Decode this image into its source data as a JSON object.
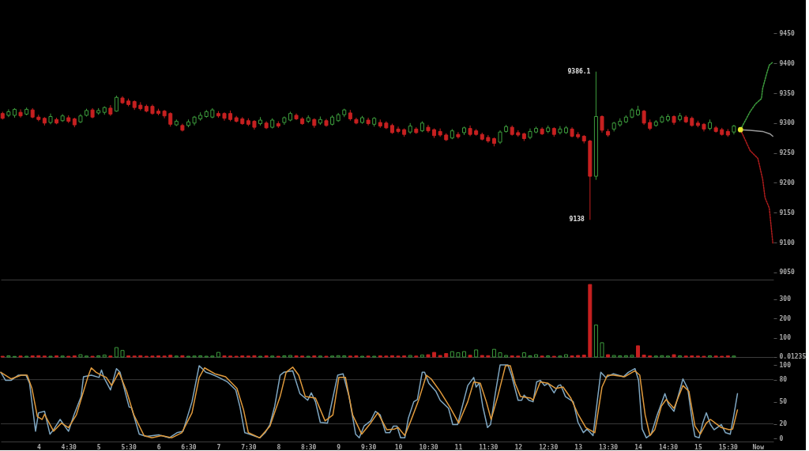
{
  "chart_data": [
    {
      "type": "candlestick",
      "xlim": [
        3.37,
        16.26
      ],
      "ylim": [
        9038,
        9506
      ],
      "yticks": [
        9050,
        9100,
        9150,
        9200,
        9250,
        9300,
        9350,
        9400,
        9450
      ],
      "tick_labels": "y",
      "grid": false,
      "x": [
        3.4,
        3.5,
        3.6,
        3.7,
        3.8,
        3.9,
        4.0,
        4.1,
        4.2,
        4.3,
        4.4,
        4.5,
        4.6,
        4.7,
        4.8,
        4.9,
        5.0,
        5.1,
        5.2,
        5.3,
        5.4,
        5.5,
        5.6,
        5.7,
        5.8,
        5.9,
        6.0,
        6.1,
        6.2,
        6.3,
        6.4,
        6.5,
        6.6,
        6.7,
        6.8,
        6.9,
        7.0,
        7.1,
        7.2,
        7.3,
        7.4,
        7.5,
        7.6,
        7.7,
        7.8,
        7.9,
        8.0,
        8.1,
        8.2,
        8.3,
        8.4,
        8.5,
        8.6,
        8.7,
        8.8,
        8.9,
        9.0,
        9.1,
        9.2,
        9.3,
        9.4,
        9.5,
        9.6,
        9.7,
        9.8,
        9.9,
        10.0,
        10.1,
        10.2,
        10.3,
        10.4,
        10.5,
        10.6,
        10.7,
        10.8,
        10.9,
        11.0,
        11.1,
        11.2,
        11.3,
        11.4,
        11.5,
        11.6,
        11.7,
        11.8,
        11.9,
        12.0,
        12.1,
        12.2,
        12.3,
        12.4,
        12.5,
        12.6,
        12.7,
        12.8,
        12.9,
        13.0,
        13.1,
        13.2,
        13.3,
        13.4,
        13.5,
        13.6,
        13.7,
        13.8,
        13.9,
        14.0,
        14.1,
        14.2,
        14.3,
        14.4,
        14.5,
        14.6,
        14.7,
        14.8,
        14.9,
        15.0,
        15.1,
        15.2,
        15.3,
        15.4,
        15.5,
        15.6
      ],
      "ohlc": [
        [
          9316,
          9319,
          9306,
          9308
        ],
        [
          9313,
          9323,
          9310,
          9319
        ],
        [
          9313,
          9325,
          9309,
          9323
        ],
        [
          9318,
          9323,
          9309,
          9312
        ],
        [
          9315,
          9326,
          9313,
          9323
        ],
        [
          9322,
          9325,
          9308,
          9310
        ],
        [
          9310,
          9314,
          9303,
          9306
        ],
        [
          9308,
          9310,
          9296,
          9300
        ],
        [
          9301,
          9316,
          9298,
          9311
        ],
        [
          9306,
          9309,
          9298,
          9300
        ],
        [
          9304,
          9315,
          9302,
          9312
        ],
        [
          9309,
          9313,
          9300,
          9303
        ],
        [
          9307,
          9309,
          9293,
          9297
        ],
        [
          9302,
          9315,
          9300,
          9312
        ],
        [
          9313,
          9324,
          9311,
          9321
        ],
        [
          9322,
          9325,
          9308,
          9310
        ],
        [
          9317,
          9325,
          9314,
          9321
        ],
        [
          9318,
          9328,
          9314,
          9326
        ],
        [
          9325,
          9330,
          9312,
          9315
        ],
        [
          9320,
          9346,
          9319,
          9343
        ],
        [
          9342,
          9345,
          9332,
          9334
        ],
        [
          9337,
          9341,
          9328,
          9331
        ],
        [
          9336,
          9338,
          9322,
          9326
        ],
        [
          9330,
          9335,
          9321,
          9324
        ],
        [
          9328,
          9331,
          9318,
          9320
        ],
        [
          9328,
          9331,
          9314,
          9316
        ],
        [
          9320,
          9324,
          9313,
          9316
        ],
        [
          9320,
          9322,
          9308,
          9312
        ],
        [
          9316,
          9318,
          9294,
          9298
        ],
        [
          9297,
          9306,
          9295,
          9303
        ],
        [
          9296,
          9299,
          9286,
          9288
        ],
        [
          9296,
          9306,
          9293,
          9302
        ],
        [
          9300,
          9312,
          9296,
          9310
        ],
        [
          9307,
          9318,
          9304,
          9313
        ],
        [
          9311,
          9322,
          9309,
          9319
        ],
        [
          9310,
          9325,
          9308,
          9322
        ],
        [
          9316,
          9320,
          9309,
          9312
        ],
        [
          9316,
          9318,
          9304,
          9308
        ],
        [
          9316,
          9321,
          9303,
          9306
        ],
        [
          9309,
          9312,
          9301,
          9303
        ],
        [
          9307,
          9310,
          9297,
          9299
        ],
        [
          9304,
          9308,
          9295,
          9298
        ],
        [
          9303,
          9305,
          9289,
          9293
        ],
        [
          9299,
          9310,
          9296,
          9305
        ],
        [
          9300,
          9303,
          9290,
          9292
        ],
        [
          9293,
          9308,
          9291,
          9305
        ],
        [
          9299,
          9303,
          9292,
          9295
        ],
        [
          9301,
          9311,
          9297,
          9309
        ],
        [
          9305,
          9319,
          9303,
          9316
        ],
        [
          9313,
          9316,
          9305,
          9307
        ],
        [
          9307,
          9310,
          9297,
          9299
        ],
        [
          9303,
          9313,
          9300,
          9309
        ],
        [
          9306,
          9308,
          9292,
          9296
        ],
        [
          9300,
          9311,
          9297,
          9306
        ],
        [
          9304,
          9307,
          9294,
          9296
        ],
        [
          9298,
          9313,
          9296,
          9310
        ],
        [
          9304,
          9317,
          9302,
          9314
        ],
        [
          9314,
          9324,
          9310,
          9322
        ],
        [
          9317,
          9322,
          9304,
          9307
        ],
        [
          9306,
          9309,
          9298,
          9300
        ],
        [
          9301,
          9312,
          9299,
          9309
        ],
        [
          9305,
          9309,
          9296,
          9299
        ],
        [
          9298,
          9310,
          9294,
          9308
        ],
        [
          9301,
          9306,
          9292,
          9295
        ],
        [
          9300,
          9303,
          9290,
          9292
        ],
        [
          9296,
          9299,
          9282,
          9284
        ],
        [
          9290,
          9294,
          9283,
          9286
        ],
        [
          9289,
          9291,
          9277,
          9281
        ],
        [
          9285,
          9300,
          9282,
          9295
        ],
        [
          9290,
          9293,
          9282,
          9284
        ],
        [
          9287,
          9303,
          9285,
          9300
        ],
        [
          9293,
          9297,
          9284,
          9287
        ],
        [
          9289,
          9291,
          9275,
          9279
        ],
        [
          9286,
          9291,
          9277,
          9280
        ],
        [
          9280,
          9283,
          9270,
          9272
        ],
        [
          9275,
          9290,
          9273,
          9287
        ],
        [
          9281,
          9285,
          9274,
          9277
        ],
        [
          9284,
          9294,
          9280,
          9292
        ],
        [
          9291,
          9296,
          9278,
          9281
        ],
        [
          9287,
          9290,
          9279,
          9281
        ],
        [
          9281,
          9284,
          9271,
          9273
        ],
        [
          9276,
          9280,
          9267,
          9270
        ],
        [
          9274,
          9276,
          9261,
          9266
        ],
        [
          9268,
          9288,
          9265,
          9285
        ],
        [
          9286,
          9297,
          9284,
          9294
        ],
        [
          9293,
          9296,
          9279,
          9281
        ],
        [
          9284,
          9288,
          9277,
          9280
        ],
        [
          9282,
          9284,
          9270,
          9274
        ],
        [
          9276,
          9291,
          9273,
          9286
        ],
        [
          9285,
          9294,
          9283,
          9291
        ],
        [
          9290,
          9293,
          9280,
          9282
        ],
        [
          9286,
          9296,
          9283,
          9292
        ],
        [
          9291,
          9293,
          9277,
          9281
        ],
        [
          9284,
          9295,
          9281,
          9290
        ],
        [
          9284,
          9295,
          9282,
          9292
        ],
        [
          9290,
          9293,
          9276,
          9278
        ],
        [
          9281,
          9285,
          9274,
          9277
        ],
        [
          9278,
          9280,
          9266,
          9270
        ],
        [
          9270,
          9272,
          9138,
          9211
        ],
        [
          9211,
          9386.1,
          9205,
          9311
        ],
        [
          9311,
          9313,
          9284,
          9288
        ],
        [
          9286,
          9290,
          9277,
          9280
        ],
        [
          9290,
          9302,
          9286,
          9300
        ],
        [
          9297,
          9308,
          9294,
          9303
        ],
        [
          9302,
          9313,
          9300,
          9310
        ],
        [
          9310,
          9325,
          9308,
          9322
        ],
        [
          9314,
          9329,
          9312,
          9322
        ],
        [
          9320,
          9322,
          9297,
          9300
        ],
        [
          9301,
          9306,
          9288,
          9291
        ],
        [
          9296,
          9305,
          9294,
          9302
        ],
        [
          9302,
          9313,
          9300,
          9310
        ],
        [
          9305,
          9315,
          9302,
          9311
        ],
        [
          9311,
          9313,
          9297,
          9301
        ],
        [
          9306,
          9317,
          9303,
          9312
        ],
        [
          9310,
          9313,
          9300,
          9302
        ],
        [
          9308,
          9311,
          9294,
          9296
        ],
        [
          9300,
          9304,
          9293,
          9296
        ],
        [
          9298,
          9300,
          9286,
          9290
        ],
        [
          9291,
          9306,
          9288,
          9301
        ],
        [
          9292,
          9295,
          9284,
          9286
        ],
        [
          9289,
          9292,
          9279,
          9281
        ],
        [
          9286,
          9290,
          9277,
          9280
        ],
        [
          9285,
          9297,
          9281,
          9295
        ]
      ],
      "colors": [
        "#c62020",
        "#3d9c3d",
        "#3d9c3d",
        "#c62020",
        "#3d9c3d",
        "#c62020",
        "#c62020",
        "#c62020",
        "#3d9c3d",
        "#c62020",
        "#3d9c3d",
        "#c62020",
        "#c62020",
        "#3d9c3d",
        "#3d9c3d",
        "#c62020",
        "#3d9c3d",
        "#3d9c3d",
        "#c62020",
        "#3d9c3d",
        "#c62020",
        "#c62020",
        "#c62020",
        "#c62020",
        "#c62020",
        "#c62020",
        "#c62020",
        "#c62020",
        "#c62020",
        "#3d9c3d",
        "#c62020",
        "#3d9c3d",
        "#3d9c3d",
        "#3d9c3d",
        "#3d9c3d",
        "#3d9c3d",
        "#c62020",
        "#c62020",
        "#c62020",
        "#c62020",
        "#c62020",
        "#c62020",
        "#c62020",
        "#3d9c3d",
        "#c62020",
        "#3d9c3d",
        "#c62020",
        "#3d9c3d",
        "#3d9c3d",
        "#c62020",
        "#c62020",
        "#3d9c3d",
        "#c62020",
        "#3d9c3d",
        "#c62020",
        "#3d9c3d",
        "#3d9c3d",
        "#3d9c3d",
        "#c62020",
        "#c62020",
        "#3d9c3d",
        "#c62020",
        "#3d9c3d",
        "#c62020",
        "#c62020",
        "#c62020",
        "#c62020",
        "#c62020",
        "#3d9c3d",
        "#c62020",
        "#3d9c3d",
        "#c62020",
        "#c62020",
        "#c62020",
        "#c62020",
        "#3d9c3d",
        "#c62020",
        "#3d9c3d",
        "#c62020",
        "#c62020",
        "#c62020",
        "#c62020",
        "#c62020",
        "#3d9c3d",
        "#3d9c3d",
        "#c62020",
        "#c62020",
        "#c62020",
        "#3d9c3d",
        "#3d9c3d",
        "#c62020",
        "#3d9c3d",
        "#c62020",
        "#3d9c3d",
        "#3d9c3d",
        "#c62020",
        "#c62020",
        "#c62020",
        "#c62020",
        "#3d9c3d",
        "#c62020",
        "#c62020",
        "#3d9c3d",
        "#3d9c3d",
        "#3d9c3d",
        "#3d9c3d",
        "#3d9c3d",
        "#c62020",
        "#c62020",
        "#3d9c3d",
        "#3d9c3d",
        "#3d9c3d",
        "#c62020",
        "#3d9c3d",
        "#c62020",
        "#c62020",
        "#c62020",
        "#c62020",
        "#3d9c3d",
        "#c62020",
        "#c62020",
        "#c62020",
        "#3d9c3d"
      ],
      "series": [
        {
          "type": "line",
          "color": "#3d9c3d",
          "line_style": "dotted",
          "x": [
            15.71,
            15.87,
            15.96,
            16.06,
            16.08,
            16.15,
            16.19,
            16.25
          ],
          "values": [
            9289,
            9319,
            9332,
            9341,
            9358,
            9384,
            9397,
            9402
          ]
        },
        {
          "type": "line",
          "color": "#b01c1c",
          "line_style": "dotted",
          "x": [
            15.71,
            15.87,
            16.0,
            16.08,
            16.12,
            16.19,
            16.25
          ],
          "values": [
            9289,
            9254,
            9241,
            9206,
            9175,
            9158,
            9099
          ]
        },
        {
          "type": "line",
          "color": "#9a9a9a",
          "x": [
            15.71,
            15.87,
            16.08,
            16.2,
            16.25
          ],
          "values": [
            9289,
            9288,
            9286,
            9282,
            9278
          ]
        },
        {
          "type": "scatter",
          "color": "#e6e62e",
          "marker": "circle",
          "x": [
            15.71
          ],
          "values": [
            9289
          ]
        }
      ],
      "annotations": [
        {
          "text": "9386.1",
          "x": 13.3,
          "y": 9386.1
        },
        {
          "text": "9138",
          "x": 13.2,
          "y": 9138
        }
      ]
    },
    {
      "type": "bar",
      "xlim": [
        3.37,
        16.26
      ],
      "ylim": [
        0,
        393
      ],
      "yticks": [
        0.01235,
        100,
        200,
        300
      ],
      "tick_labels": "y",
      "grid": false,
      "x": [
        3.4,
        3.5,
        3.6,
        3.7,
        3.8,
        3.9,
        4.0,
        4.1,
        4.2,
        4.3,
        4.4,
        4.5,
        4.6,
        4.7,
        4.8,
        4.9,
        5.0,
        5.1,
        5.2,
        5.3,
        5.4,
        5.5,
        5.6,
        5.7,
        5.8,
        5.9,
        6.0,
        6.1,
        6.2,
        6.3,
        6.4,
        6.5,
        6.6,
        6.7,
        6.8,
        6.9,
        7.0,
        7.1,
        7.2,
        7.3,
        7.4,
        7.5,
        7.6,
        7.7,
        7.8,
        7.9,
        8.0,
        8.1,
        8.2,
        8.3,
        8.4,
        8.5,
        8.6,
        8.7,
        8.8,
        8.9,
        9.0,
        9.1,
        9.2,
        9.3,
        9.4,
        9.5,
        9.6,
        9.7,
        9.8,
        9.9,
        10.0,
        10.1,
        10.2,
        10.3,
        10.4,
        10.5,
        10.6,
        10.7,
        10.8,
        10.9,
        11.0,
        11.1,
        11.2,
        11.3,
        11.4,
        11.5,
        11.6,
        11.7,
        11.8,
        11.9,
        12.0,
        12.1,
        12.2,
        12.3,
        12.4,
        12.5,
        12.6,
        12.7,
        12.8,
        12.9,
        13.0,
        13.1,
        13.2,
        13.3,
        13.4,
        13.5,
        13.6,
        13.7,
        13.8,
        13.9,
        14.0,
        14.1,
        14.2,
        14.3,
        14.4,
        14.5,
        14.6,
        14.7,
        14.8,
        14.9,
        15.0,
        15.1,
        15.2,
        15.3,
        15.4,
        15.5,
        15.6
      ],
      "values": [
        4,
        6,
        3,
        5,
        4,
        6,
        7,
        5,
        4,
        6,
        5,
        4,
        6,
        12,
        5,
        4,
        6,
        10,
        5,
        49,
        34,
        6,
        5,
        7,
        4,
        5,
        6,
        5,
        9,
        5,
        7,
        4,
        5,
        6,
        4,
        5,
        24,
        6,
        5,
        4,
        6,
        5,
        7,
        4,
        6,
        5,
        4,
        6,
        8,
        6,
        5,
        4,
        6,
        5,
        4,
        5,
        7,
        6,
        5,
        6,
        4,
        5,
        4,
        6,
        5,
        7,
        5,
        6,
        8,
        5,
        10,
        12,
        24,
        8,
        18,
        28,
        22,
        28,
        9,
        37,
        8,
        7,
        40,
        22,
        8,
        6,
        5,
        22,
        6,
        12,
        5,
        6,
        4,
        5,
        12,
        6,
        8,
        10,
        376,
        166,
        74,
        12,
        8,
        6,
        7,
        9,
        58,
        10,
        6,
        5,
        7,
        5,
        12,
        6,
        5,
        6,
        5,
        4,
        6,
        5,
        4,
        6,
        5
      ],
      "colors": [
        "#c62020",
        "#3d9c3d",
        "#3d9c3d",
        "#c62020",
        "#3d9c3d",
        "#c62020",
        "#c62020",
        "#c62020",
        "#3d9c3d",
        "#c62020",
        "#3d9c3d",
        "#c62020",
        "#c62020",
        "#3d9c3d",
        "#3d9c3d",
        "#c62020",
        "#3d9c3d",
        "#3d9c3d",
        "#c62020",
        "#3d9c3d",
        "#3d9c3d",
        "#c62020",
        "#c62020",
        "#c62020",
        "#c62020",
        "#c62020",
        "#c62020",
        "#c62020",
        "#c62020",
        "#3d9c3d",
        "#c62020",
        "#3d9c3d",
        "#3d9c3d",
        "#3d9c3d",
        "#3d9c3d",
        "#3d9c3d",
        "#3d9c3d",
        "#c62020",
        "#c62020",
        "#c62020",
        "#c62020",
        "#c62020",
        "#c62020",
        "#3d9c3d",
        "#c62020",
        "#3d9c3d",
        "#c62020",
        "#3d9c3d",
        "#3d9c3d",
        "#c62020",
        "#c62020",
        "#3d9c3d",
        "#c62020",
        "#3d9c3d",
        "#c62020",
        "#3d9c3d",
        "#3d9c3d",
        "#3d9c3d",
        "#c62020",
        "#c62020",
        "#3d9c3d",
        "#c62020",
        "#3d9c3d",
        "#c62020",
        "#c62020",
        "#c62020",
        "#c62020",
        "#c62020",
        "#3d9c3d",
        "#c62020",
        "#3d9c3d",
        "#c62020",
        "#c62020",
        "#c62020",
        "#c62020",
        "#3d9c3d",
        "#3d9c3d",
        "#3d9c3d",
        "#c62020",
        "#3d9c3d",
        "#c62020",
        "#c62020",
        "#3d9c3d",
        "#3d9c3d",
        "#3d9c3d",
        "#c62020",
        "#c62020",
        "#3d9c3d",
        "#3d9c3d",
        "#3d9c3d",
        "#c62020",
        "#3d9c3d",
        "#c62020",
        "#3d9c3d",
        "#3d9c3d",
        "#c62020",
        "#c62020",
        "#c62020",
        "#c62020",
        "#3d9c3d",
        "#3d9c3d",
        "#c62020",
        "#3d9c3d",
        "#3d9c3d",
        "#3d9c3d",
        "#3d9c3d",
        "#c62020",
        "#c62020",
        "#c62020",
        "#3d9c3d",
        "#3d9c3d",
        "#3d9c3d",
        "#c62020",
        "#3d9c3d",
        "#c62020",
        "#c62020",
        "#c62020",
        "#c62020",
        "#3d9c3d",
        "#c62020",
        "#c62020",
        "#c62020",
        "#3d9c3d"
      ]
    },
    {
      "type": "line",
      "xlim": [
        3.37,
        16.26
      ],
      "ylim": [
        -4,
        100
      ],
      "yticks": [
        0,
        20,
        50,
        80,
        100
      ],
      "grid": false,
      "xticks": [
        4,
        {
          "value": 4.5,
          "label": "4:30"
        },
        5,
        {
          "value": 5.5,
          "label": "5:30"
        },
        6,
        {
          "value": 6.5,
          "label": "6:30"
        },
        7,
        {
          "value": 7.5,
          "label": "7:30"
        },
        8,
        {
          "value": 8.5,
          "label": "8:30"
        },
        9,
        {
          "value": 9.5,
          "label": "9:30"
        },
        10,
        {
          "value": 10.5,
          "label": "10:30"
        },
        11,
        {
          "value": 11.5,
          "label": "11:30"
        },
        12,
        {
          "value": 12.5,
          "label": "12:30"
        },
        13,
        {
          "value": 13.5,
          "label": "13:30"
        },
        14,
        {
          "value": 14.5,
          "label": "14:30"
        },
        15,
        {
          "value": 15.5,
          "label": "15:30"
        },
        {
          "value": 16,
          "label": "Now"
        }
      ],
      "ref_lines": [
        {
          "axis": "y",
          "value": 20,
          "color": "#3a3a3a"
        },
        {
          "axis": "y",
          "value": 80,
          "color": "#3a3a3a"
        }
      ],
      "series": [
        {
          "color": "#7fa7c2",
          "x": [
            3.37,
            3.45,
            3.54,
            3.66,
            3.79,
            3.85,
            3.95,
            4.0,
            4.1,
            4.19,
            4.25,
            4.36,
            4.48,
            4.5,
            4.59,
            4.71,
            4.75,
            4.88,
            5.01,
            5.05,
            5.09,
            5.2,
            5.3,
            5.36,
            5.51,
            5.55,
            5.68,
            5.8,
            6.01,
            6.18,
            6.31,
            6.41,
            6.56,
            6.68,
            6.79,
            6.87,
            6.98,
            7.15,
            7.29,
            7.36,
            7.44,
            7.52,
            7.69,
            7.78,
            7.86,
            7.94,
            8.03,
            8.09,
            8.24,
            8.36,
            8.49,
            8.55,
            8.62,
            8.7,
            8.82,
            8.99,
            9.08,
            9.18,
            9.29,
            9.35,
            9.43,
            9.54,
            9.62,
            9.7,
            9.79,
            9.86,
            9.92,
            9.98,
            10.04,
            10.11,
            10.17,
            10.26,
            10.32,
            10.4,
            10.44,
            10.51,
            10.63,
            10.7,
            10.84,
            10.91,
            10.99,
            11.16,
            11.26,
            11.3,
            11.35,
            11.41,
            11.49,
            11.54,
            11.62,
            11.7,
            11.83,
            11.89,
            12.0,
            12.06,
            12.1,
            12.18,
            12.25,
            12.31,
            12.37,
            12.44,
            12.5,
            12.6,
            12.67,
            12.71,
            12.79,
            12.92,
            13.0,
            13.09,
            13.15,
            13.25,
            13.38,
            13.46,
            13.59,
            13.76,
            13.84,
            13.95,
            14.01,
            14.07,
            14.14,
            14.22,
            14.32,
            14.45,
            14.51,
            14.6,
            14.75,
            14.83,
            14.91,
            14.95,
            15.02,
            15.08,
            15.14,
            15.21,
            15.27,
            15.39,
            15.46,
            15.54,
            15.6,
            15.66
          ],
          "values": [
            90,
            79,
            79,
            86,
            86,
            75,
            10,
            35,
            37,
            6,
            12,
            26,
            12,
            10,
            32,
            57,
            84,
            86,
            83,
            93,
            83,
            66,
            95,
            90,
            43,
            42,
            6,
            3,
            5,
            1,
            8,
            10,
            50,
            99,
            90,
            88,
            84,
            77,
            66,
            43,
            8,
            6,
            1,
            8,
            19,
            44,
            86,
            90,
            92,
            61,
            52,
            62,
            50,
            22,
            21,
            86,
            88,
            57,
            6,
            1,
            17,
            24,
            37,
            32,
            8,
            8,
            17,
            17,
            1,
            1,
            28,
            50,
            53,
            90,
            90,
            75,
            64,
            52,
            41,
            19,
            19,
            72,
            83,
            70,
            75,
            44,
            15,
            19,
            61,
            100,
            100,
            86,
            52,
            52,
            59,
            52,
            50,
            77,
            79,
            72,
            75,
            62,
            72,
            73,
            57,
            50,
            22,
            8,
            13,
            4,
            90,
            83,
            88,
            84,
            90,
            95,
            79,
            13,
            1,
            6,
            32,
            61,
            46,
            37,
            81,
            68,
            21,
            3,
            1,
            21,
            35,
            19,
            12,
            19,
            8,
            6,
            32,
            61
          ]
        },
        {
          "color": "#e09a3c",
          "x": [
            3.37,
            3.54,
            3.71,
            3.81,
            3.89,
            3.98,
            4.06,
            4.1,
            4.25,
            4.38,
            4.5,
            4.63,
            4.75,
            4.82,
            4.88,
            4.96,
            5.05,
            5.13,
            5.22,
            5.34,
            5.47,
            5.59,
            5.76,
            5.89,
            6.05,
            6.22,
            6.39,
            6.56,
            6.68,
            6.77,
            6.94,
            7.12,
            7.31,
            7.42,
            7.5,
            7.69,
            7.86,
            8.03,
            8.13,
            8.24,
            8.34,
            8.45,
            8.62,
            8.78,
            8.91,
            9.01,
            9.12,
            9.24,
            9.39,
            9.54,
            9.66,
            9.81,
            9.94,
            10.0,
            10.11,
            10.21,
            10.34,
            10.47,
            10.55,
            10.7,
            10.86,
            11.01,
            11.16,
            11.26,
            11.37,
            11.47,
            11.55,
            11.66,
            11.79,
            11.87,
            11.95,
            12.04,
            12.21,
            12.25,
            12.37,
            12.5,
            12.63,
            12.75,
            12.88,
            13.0,
            13.13,
            13.28,
            13.4,
            13.49,
            13.59,
            13.78,
            13.95,
            14.03,
            14.12,
            14.2,
            14.28,
            14.39,
            14.47,
            14.6,
            14.75,
            14.85,
            14.95,
            15.04,
            15.14,
            15.21,
            15.29,
            15.39,
            15.52,
            15.58,
            15.66
          ],
          "values": [
            90,
            81,
            86,
            86,
            68,
            30,
            26,
            33,
            10,
            21,
            15,
            32,
            64,
            83,
            96,
            90,
            86,
            83,
            72,
            90,
            64,
            32,
            4,
            1,
            4,
            1,
            8,
            35,
            83,
            96,
            88,
            84,
            68,
            39,
            8,
            1,
            17,
            57,
            90,
            97,
            86,
            57,
            55,
            24,
            32,
            83,
            83,
            32,
            6,
            21,
            35,
            12,
            13,
            15,
            4,
            24,
            52,
            86,
            81,
            64,
            43,
            21,
            50,
            77,
            75,
            50,
            26,
            57,
            99,
            99,
            75,
            57,
            55,
            52,
            77,
            75,
            68,
            70,
            55,
            33,
            15,
            8,
            70,
            86,
            86,
            84,
            92,
            86,
            32,
            4,
            12,
            44,
            53,
            41,
            72,
            64,
            17,
            6,
            21,
            26,
            21,
            15,
            12,
            13,
            39
          ]
        }
      ]
    }
  ]
}
